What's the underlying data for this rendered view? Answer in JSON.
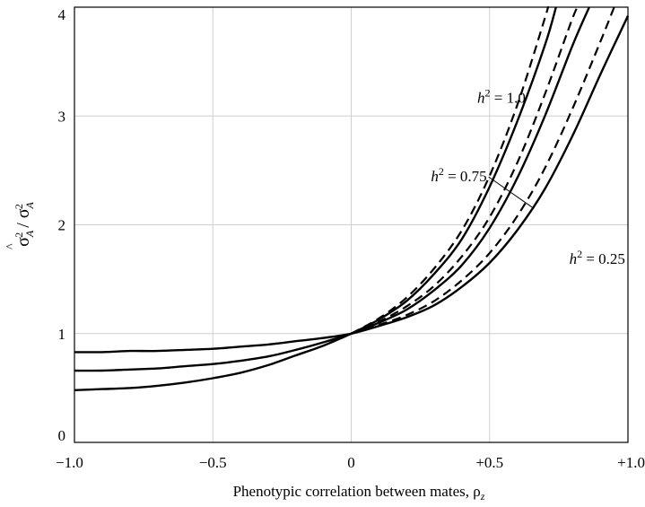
{
  "chart_data": {
    "type": "line",
    "xlabel": "Phenotypic correlation between mates, ρ",
    "xlabel_sub": "z",
    "ylabel_text": "σ²A / σ²A",
    "xlim": [
      -1.0,
      1.0
    ],
    "ylim": [
      0,
      4
    ],
    "x_ticks": [
      {
        "value": -1.0,
        "label": "−1.0"
      },
      {
        "value": -0.5,
        "label": "−0.5"
      },
      {
        "value": 0,
        "label": "0"
      },
      {
        "value": 0.5,
        "label": "+0.5"
      },
      {
        "value": 1.0,
        "label": "+1.0"
      }
    ],
    "y_ticks": [
      {
        "value": 0,
        "label": "0"
      },
      {
        "value": 1,
        "label": "1"
      },
      {
        "value": 2,
        "label": "2"
      },
      {
        "value": 3,
        "label": "3"
      },
      {
        "value": 4,
        "label": "4"
      }
    ],
    "grid": true,
    "series": [
      {
        "h2": 0.25,
        "style": "solid",
        "x": [
          -1.0,
          -0.9,
          -0.8,
          -0.7,
          -0.6,
          -0.5,
          -0.4,
          -0.3,
          -0.2,
          -0.1,
          0.0,
          0.1,
          0.2,
          0.3,
          0.4,
          0.5,
          0.6,
          0.7,
          0.8,
          0.9,
          1.0
        ],
        "y": [
          0.83,
          0.83,
          0.84,
          0.84,
          0.85,
          0.86,
          0.88,
          0.9,
          0.93,
          0.96,
          1.0,
          1.07,
          1.15,
          1.26,
          1.43,
          1.65,
          1.95,
          2.33,
          2.82,
          3.38,
          3.92
        ]
      },
      {
        "h2": 0.25,
        "style": "dashed",
        "x": [
          0.0,
          0.1,
          0.2,
          0.3,
          0.4,
          0.5,
          0.6,
          0.7,
          0.8,
          0.9,
          0.95
        ],
        "y": [
          1.0,
          1.08,
          1.17,
          1.3,
          1.49,
          1.74,
          2.08,
          2.52,
          3.07,
          3.68,
          4.0
        ]
      },
      {
        "h2": 0.75,
        "style": "solid",
        "x": [
          -1.0,
          -0.9,
          -0.8,
          -0.7,
          -0.6,
          -0.5,
          -0.4,
          -0.3,
          -0.2,
          -0.1,
          0.0,
          0.1,
          0.2,
          0.3,
          0.4,
          0.5,
          0.6,
          0.7,
          0.8,
          0.86
        ],
        "y": [
          0.66,
          0.66,
          0.67,
          0.68,
          0.7,
          0.72,
          0.75,
          0.79,
          0.85,
          0.92,
          1.0,
          1.1,
          1.22,
          1.4,
          1.63,
          1.97,
          2.43,
          3.0,
          3.65,
          4.0
        ]
      },
      {
        "h2": 0.75,
        "style": "dashed",
        "x": [
          0.0,
          0.1,
          0.2,
          0.3,
          0.4,
          0.5,
          0.6,
          0.7,
          0.8,
          0.82
        ],
        "y": [
          1.0,
          1.11,
          1.25,
          1.44,
          1.71,
          2.07,
          2.57,
          3.2,
          3.9,
          4.0
        ]
      },
      {
        "h2": 1.0,
        "style": "solid",
        "x": [
          -1.0,
          -0.9,
          -0.8,
          -0.7,
          -0.6,
          -0.5,
          -0.4,
          -0.3,
          -0.2,
          -0.1,
          0.0,
          0.1,
          0.2,
          0.3,
          0.4,
          0.5,
          0.6,
          0.7,
          0.74
        ],
        "y": [
          0.48,
          0.49,
          0.5,
          0.52,
          0.55,
          0.59,
          0.64,
          0.71,
          0.8,
          0.89,
          1.0,
          1.13,
          1.3,
          1.55,
          1.87,
          2.35,
          2.95,
          3.65,
          4.0
        ]
      },
      {
        "h2": 1.0,
        "style": "dashed",
        "x": [
          0.0,
          0.1,
          0.2,
          0.3,
          0.4,
          0.5,
          0.6,
          0.7,
          0.71
        ],
        "y": [
          1.0,
          1.14,
          1.33,
          1.6,
          1.95,
          2.45,
          3.1,
          3.9,
          4.0
        ]
      }
    ],
    "annotations": [
      {
        "var": "h",
        "sup": "2",
        "text": " = 1.0",
        "x": 0.63,
        "y": 3.12
      },
      {
        "var": "h",
        "sup": "2",
        "text": " = 0.75",
        "x": 0.49,
        "y": 2.4
      },
      {
        "var": "h",
        "sup": "2",
        "text": " = 0.25",
        "x": 0.99,
        "y": 1.64
      }
    ]
  }
}
